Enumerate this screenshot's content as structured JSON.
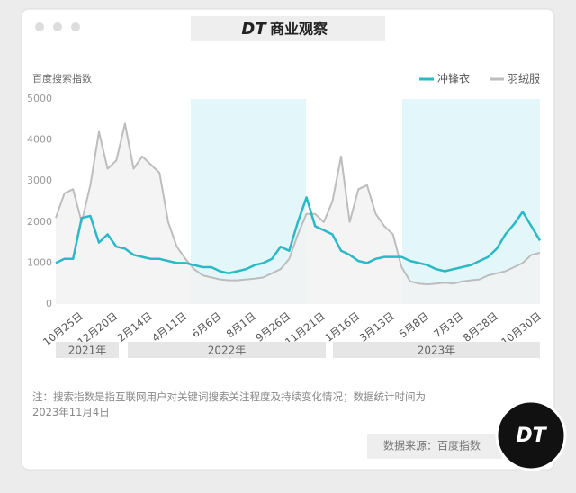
{
  "header": {
    "logo": "DT",
    "title": "商业观察"
  },
  "chart_data": {
    "type": "line",
    "y_label": "百度搜索指数",
    "categories": [
      null,
      null,
      null,
      "10月25日",
      null,
      null,
      null,
      "12月20日",
      null,
      null,
      null,
      "2月14日",
      null,
      null,
      null,
      "4月11日",
      null,
      null,
      null,
      "6月6日",
      null,
      null,
      null,
      "8月1日",
      null,
      null,
      null,
      "9月26日",
      null,
      null,
      null,
      "11月21日",
      null,
      null,
      null,
      "1月16日",
      null,
      null,
      null,
      "3月13日",
      null,
      null,
      null,
      "5月8日",
      null,
      null,
      null,
      "7月3日",
      null,
      null,
      null,
      "8月28日",
      null,
      null,
      null,
      null,
      "10月30日"
    ],
    "series": [
      {
        "name": "冲锋衣",
        "color": "#2bb9c6",
        "values": [
          1000,
          1100,
          1100,
          2100,
          2150,
          1500,
          1700,
          1400,
          1350,
          1200,
          1150,
          1100,
          1100,
          1050,
          1000,
          1000,
          950,
          900,
          900,
          800,
          750,
          800,
          850,
          950,
          1000,
          1100,
          1400,
          1300,
          2000,
          2600,
          1900,
          1800,
          1700,
          1300,
          1200,
          1050,
          1000,
          1100,
          1150,
          1150,
          1150,
          1050,
          1000,
          950,
          850,
          800,
          850,
          900,
          950,
          1050,
          1150,
          1350,
          1700,
          1950,
          2250,
          1900,
          1550
        ]
      },
      {
        "name": "羽绒服",
        "color": "#bdbdbd",
        "values": [
          2100,
          2700,
          2800,
          2000,
          2900,
          4200,
          3300,
          3500,
          4400,
          3300,
          3600,
          3400,
          3200,
          2000,
          1400,
          1100,
          850,
          700,
          650,
          600,
          580,
          580,
          600,
          620,
          650,
          750,
          850,
          1100,
          1700,
          2200,
          2200,
          2000,
          2500,
          3600,
          2000,
          2800,
          2900,
          2200,
          1900,
          1700,
          900,
          550,
          500,
          480,
          500,
          520,
          500,
          550,
          580,
          600,
          700,
          750,
          800,
          900,
          1000,
          1200,
          1250
        ]
      }
    ],
    "ylim": [
      0,
      5000
    ],
    "yticks": [
      0,
      1000,
      2000,
      3000,
      4000,
      5000
    ],
    "grid": false,
    "year_bands": [
      "2021年",
      "2022年",
      "2023年"
    ]
  },
  "note": "注：搜索指数是指互联网用户对关键词搜索关注程度及持续变化情况；数据统计时间为2023年11月4日",
  "source": "数据来源：百度指数",
  "badge": "DT"
}
